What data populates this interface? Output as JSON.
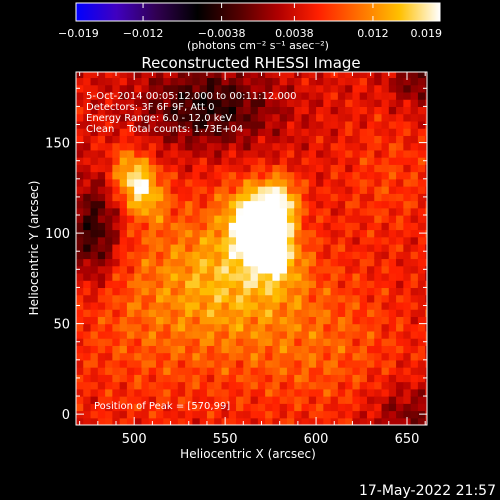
{
  "chart_data": {
    "type": "heatmap",
    "title": "Reconstructed RHESSI Image",
    "xlabel": "Heliocentric X (arcsec)",
    "ylabel": "Heliocentric Y (arcsec)",
    "xlim": [
      468,
      661
    ],
    "ylim": [
      -6,
      189
    ],
    "x_ticks": [
      500,
      550,
      600,
      650
    ],
    "y_ticks": [
      0,
      50,
      100,
      150
    ],
    "colorbar": {
      "min": -0.019,
      "max": 0.019,
      "ticks": [
        -0.019,
        -0.012,
        -0.0038,
        0.0038,
        0.012,
        0.019
      ],
      "tick_labels": [
        "−0.019",
        "−0.012",
        "−0.0038",
        "0.0038",
        "0.012",
        "0.019"
      ],
      "label": "(photons cm⁻² s⁻¹ asec⁻²)",
      "colormap": [
        "#0000ff",
        "#4000c0",
        "#300050",
        "#000000",
        "#500000",
        "#b00000",
        "#ff2000",
        "#ff7000",
        "#ffc000",
        "#ffffff"
      ]
    },
    "annotations": [
      "5-Oct-2014 00:05:12.000 to 00:11:12.000",
      "Detectors: 3F 6F 9F, Att 0",
      "Energy Range: 6.0 - 12.0 keV",
      "Clean    Total counts: 1.73E+04"
    ],
    "peak_label": "Position of Peak = [570,99]",
    "peak": {
      "x": 570,
      "y": 99,
      "value": 0.019
    },
    "sources": [
      {
        "x": 570,
        "y": 100,
        "sigma_x": 10,
        "sigma_y": 16,
        "angle": 25,
        "value": 0.019
      },
      {
        "x": 579,
        "y": 118,
        "sigma_x": 8,
        "sigma_y": 10,
        "angle": 0,
        "value": 0.012
      },
      {
        "x": 502,
        "y": 128,
        "sigma_x": 8,
        "sigma_y": 13,
        "angle": 25,
        "value": 0.013
      },
      {
        "x": 555,
        "y": 80,
        "sigma_x": 25,
        "sigma_y": 25,
        "angle": 0,
        "value": 0.007
      },
      {
        "x": 600,
        "y": 40,
        "sigma_x": 35,
        "sigma_y": 30,
        "angle": 0,
        "value": 0.005
      },
      {
        "x": 510,
        "y": 60,
        "sigma_x": 35,
        "sigma_y": 40,
        "angle": 0,
        "value": 0.005
      },
      {
        "x": 640,
        "y": 130,
        "sigma_x": 20,
        "sigma_y": 25,
        "angle": 0,
        "value": 0.003
      }
    ],
    "baseline": 0.0045,
    "negative_regions": [
      {
        "x": 478,
        "y": 100,
        "sigma_x": 10,
        "sigma_y": 20,
        "value": -0.01
      },
      {
        "x": 540,
        "y": 170,
        "sigma_x": 25,
        "sigma_y": 15,
        "value": -0.009
      },
      {
        "x": 655,
        "y": 185,
        "sigma_x": 10,
        "sigma_y": 10,
        "value": -0.006
      },
      {
        "x": 650,
        "y": 0,
        "sigma_x": 15,
        "sigma_y": 12,
        "value": -0.005
      }
    ]
  },
  "footer": {
    "timestamp": "17-May-2022 21:57"
  }
}
